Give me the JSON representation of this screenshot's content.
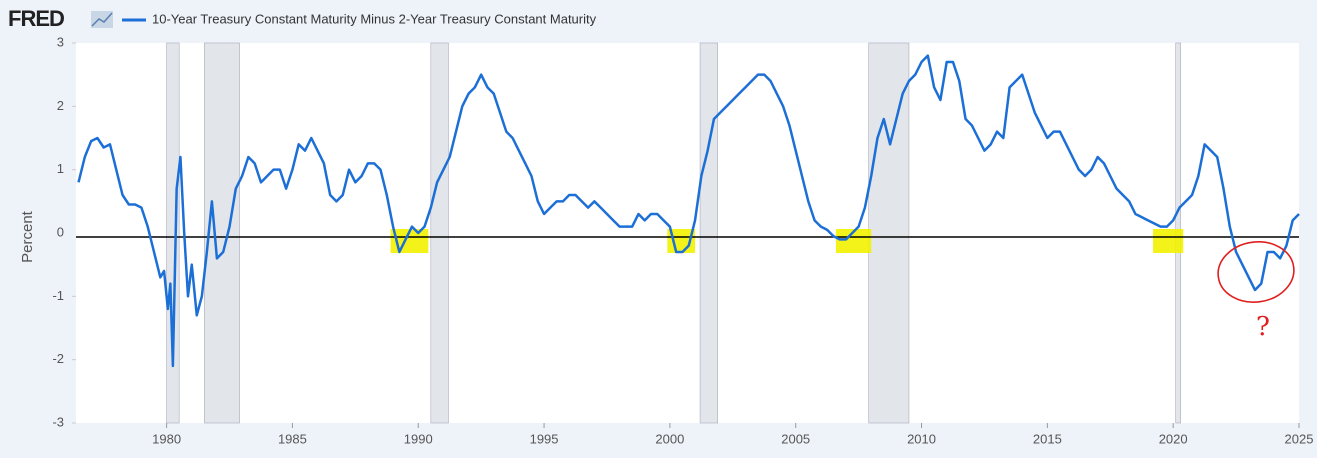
{
  "chart_data": {
    "type": "line",
    "logo": "FRED",
    "title": "10-Year Treasury Constant Maturity Minus 2-Year Treasury Constant Maturity",
    "y_label": "Percent",
    "annotation": "?",
    "xlim": [
      1976.4,
      2025
    ],
    "xticks": [
      1980,
      1985,
      1990,
      1995,
      2000,
      2005,
      2010,
      2015,
      2020,
      2025
    ],
    "ylim": [
      -3,
      3
    ],
    "yticks": [
      3,
      2,
      1,
      0,
      -1,
      -2,
      -3
    ],
    "recessions": [
      [
        1980.0,
        1980.5
      ],
      [
        1981.5,
        1982.9
      ],
      [
        1990.5,
        1991.2
      ],
      [
        2001.2,
        2001.9
      ],
      [
        2007.9,
        2009.5
      ],
      [
        2020.1,
        2020.3
      ]
    ],
    "highlights": [
      [
        1988.9,
        1990.4
      ],
      [
        1999.9,
        2001.0
      ],
      [
        2006.6,
        2008.0
      ],
      [
        2019.2,
        2020.4
      ]
    ],
    "x": [
      1976.5,
      1976.75,
      1977,
      1977.25,
      1977.5,
      1977.75,
      1978,
      1978.25,
      1978.5,
      1978.75,
      1979,
      1979.25,
      1979.5,
      1979.75,
      1979.9,
      1980.05,
      1980.15,
      1980.25,
      1980.4,
      1980.55,
      1980.7,
      1980.85,
      1981.0,
      1981.2,
      1981.4,
      1981.6,
      1981.8,
      1982.0,
      1982.25,
      1982.5,
      1982.75,
      1983,
      1983.25,
      1983.5,
      1983.75,
      1984,
      1984.25,
      1984.5,
      1984.75,
      1985,
      1985.25,
      1985.5,
      1985.75,
      1986,
      1986.25,
      1986.5,
      1986.75,
      1987,
      1987.25,
      1987.5,
      1987.75,
      1988,
      1988.25,
      1988.5,
      1988.75,
      1989,
      1989.25,
      1989.5,
      1989.75,
      1990,
      1990.25,
      1990.5,
      1990.75,
      1991,
      1991.25,
      1991.5,
      1991.75,
      1992,
      1992.25,
      1992.5,
      1992.75,
      1993,
      1993.25,
      1993.5,
      1993.75,
      1994,
      1994.25,
      1994.5,
      1994.75,
      1995,
      1995.25,
      1995.5,
      1995.75,
      1996,
      1996.25,
      1996.5,
      1996.75,
      1997,
      1997.25,
      1997.5,
      1997.75,
      1998,
      1998.25,
      1998.5,
      1998.75,
      1999,
      1999.25,
      1999.5,
      1999.75,
      2000,
      2000.25,
      2000.5,
      2000.75,
      2001,
      2001.25,
      2001.5,
      2001.75,
      2002,
      2002.25,
      2002.5,
      2002.75,
      2003,
      2003.25,
      2003.5,
      2003.75,
      2004,
      2004.25,
      2004.5,
      2004.75,
      2005,
      2005.25,
      2005.5,
      2005.75,
      2006,
      2006.25,
      2006.5,
      2006.75,
      2007,
      2007.25,
      2007.5,
      2007.75,
      2008,
      2008.25,
      2008.5,
      2008.75,
      2009,
      2009.25,
      2009.5,
      2009.75,
      2010,
      2010.25,
      2010.5,
      2010.75,
      2011,
      2011.25,
      2011.5,
      2011.75,
      2012,
      2012.25,
      2012.5,
      2012.75,
      2013,
      2013.25,
      2013.5,
      2013.75,
      2014,
      2014.25,
      2014.5,
      2014.75,
      2015,
      2015.25,
      2015.5,
      2015.75,
      2016,
      2016.25,
      2016.5,
      2016.75,
      2017,
      2017.25,
      2017.5,
      2017.75,
      2018,
      2018.25,
      2018.5,
      2018.75,
      2019,
      2019.25,
      2019.5,
      2019.75,
      2020,
      2020.25,
      2020.5,
      2020.75,
      2021,
      2021.25,
      2021.5,
      2021.75,
      2022,
      2022.25,
      2022.5,
      2022.75,
      2023,
      2023.25,
      2023.5,
      2023.75,
      2024,
      2024.25,
      2024.5,
      2024.75,
      2025
    ],
    "series": [
      {
        "name": "10-Year Treasury Constant Maturity Minus 2-Year Treasury Constant Maturity",
        "color": "#1c6fd6",
        "values": [
          0.8,
          1.2,
          1.45,
          1.5,
          1.35,
          1.4,
          1.0,
          0.6,
          0.45,
          0.45,
          0.4,
          0.1,
          -0.3,
          -0.7,
          -0.6,
          -1.2,
          -0.8,
          -2.1,
          0.7,
          1.2,
          0.0,
          -1.0,
          -0.5,
          -1.3,
          -1.0,
          -0.3,
          0.5,
          -0.4,
          -0.3,
          0.1,
          0.7,
          0.9,
          1.2,
          1.1,
          0.8,
          0.9,
          1.0,
          1.0,
          0.7,
          1.0,
          1.4,
          1.3,
          1.5,
          1.3,
          1.1,
          0.6,
          0.5,
          0.6,
          1.0,
          0.8,
          0.9,
          1.1,
          1.1,
          1.0,
          0.6,
          0.1,
          -0.3,
          -0.1,
          0.1,
          0.0,
          0.1,
          0.4,
          0.8,
          1.0,
          1.2,
          1.6,
          2.0,
          2.2,
          2.3,
          2.5,
          2.3,
          2.2,
          1.9,
          1.6,
          1.5,
          1.3,
          1.1,
          0.9,
          0.5,
          0.3,
          0.4,
          0.5,
          0.5,
          0.6,
          0.6,
          0.5,
          0.4,
          0.5,
          0.4,
          0.3,
          0.2,
          0.1,
          0.1,
          0.1,
          0.3,
          0.2,
          0.3,
          0.3,
          0.2,
          0.1,
          -0.3,
          -0.3,
          -0.2,
          0.2,
          0.9,
          1.3,
          1.8,
          1.9,
          2.0,
          2.1,
          2.2,
          2.3,
          2.4,
          2.5,
          2.5,
          2.4,
          2.2,
          2.0,
          1.7,
          1.3,
          0.9,
          0.5,
          0.2,
          0.1,
          0.05,
          -0.05,
          -0.1,
          -0.1,
          0.0,
          0.1,
          0.4,
          0.9,
          1.5,
          1.8,
          1.4,
          1.8,
          2.2,
          2.4,
          2.5,
          2.7,
          2.8,
          2.3,
          2.1,
          2.7,
          2.7,
          2.4,
          1.8,
          1.7,
          1.5,
          1.3,
          1.4,
          1.6,
          1.5,
          2.3,
          2.4,
          2.5,
          2.2,
          1.9,
          1.7,
          1.5,
          1.6,
          1.6,
          1.4,
          1.2,
          1.0,
          0.9,
          1.0,
          1.2,
          1.1,
          0.9,
          0.7,
          0.6,
          0.5,
          0.3,
          0.25,
          0.2,
          0.15,
          0.1,
          0.1,
          0.2,
          0.4,
          0.5,
          0.6,
          0.9,
          1.4,
          1.3,
          1.2,
          0.7,
          0.1,
          -0.3,
          -0.5,
          -0.7,
          -0.9,
          -0.8,
          -0.3,
          -0.3,
          -0.4,
          -0.2,
          0.2,
          0.3
        ]
      }
    ]
  }
}
